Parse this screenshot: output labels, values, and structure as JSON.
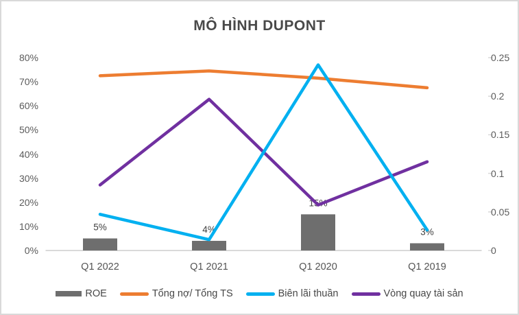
{
  "title": "MÔ HÌNH DUPONT",
  "colors": {
    "border": "#D9D9D9",
    "axis_line": "#D9D9D9",
    "tick_text": "#5b5b5b",
    "data_label": "#404040"
  },
  "chart_data": {
    "type": "combo-bar-line",
    "title": "MÔ HÌNH DUPONT",
    "categories": [
      "Q1 2022",
      "Q1 2021",
      "Q1 2020",
      "Q1 2019"
    ],
    "left_axis": {
      "ticks": [
        "0%",
        "10%",
        "20%",
        "30%",
        "40%",
        "50%",
        "60%",
        "70%",
        "80%"
      ],
      "min": 0,
      "max": 80,
      "unit": "percent"
    },
    "right_axis": {
      "ticks": [
        "0",
        "0.05",
        "0.1",
        "0.15",
        "0.2",
        "0.25"
      ],
      "min": 0,
      "max": 0.25
    },
    "grid": "off",
    "legend_position": "bottom",
    "line_draw_order": [
      1,
      3,
      2
    ],
    "series": [
      {
        "name": "ROE",
        "type": "bar",
        "axis": "left",
        "color": "#6E6E6E",
        "values": [
          5,
          4,
          15,
          3
        ],
        "data_labels": [
          "5%",
          "4%",
          "15%",
          "3%"
        ]
      },
      {
        "name": "Tổng nợ/ Tổng TS",
        "type": "line",
        "axis": "left",
        "color": "#ED7D31",
        "values": [
          72.5,
          74.5,
          71.5,
          67.5
        ]
      },
      {
        "name": "Biên lãi thuần",
        "type": "line",
        "axis": "left",
        "color": "#00B0F0",
        "values": [
          15,
          4.5,
          77,
          8.5
        ]
      },
      {
        "name": "Vòng quay tài sản",
        "type": "line",
        "axis": "right",
        "color": "#7030A0",
        "values": [
          0.085,
          0.196,
          0.059,
          0.115
        ]
      }
    ]
  }
}
